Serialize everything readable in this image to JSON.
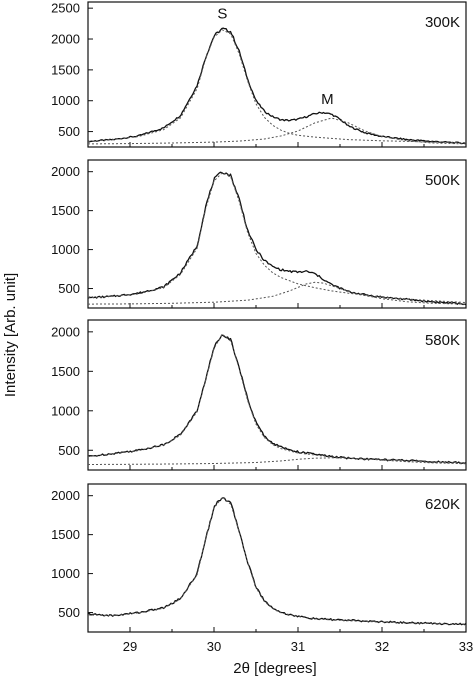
{
  "figure": {
    "ylabel": "Intensity [Arb. unit]",
    "xlabel": "2θ [degrees]"
  },
  "chart_data": [
    {
      "type": "line",
      "panel_label": "300K",
      "xlim": [
        28.5,
        33
      ],
      "ylim": [
        250,
        2600
      ],
      "xticks": [
        29,
        30,
        31,
        32,
        33
      ],
      "yticks": [
        500,
        1000,
        1500,
        2000,
        2500
      ],
      "show_x_tick_labels": false,
      "annotations": [
        {
          "text": "S",
          "x": 30.1,
          "y": 2330
        },
        {
          "text": "M",
          "x": 31.35,
          "y": 950
        }
      ],
      "series": [
        {
          "style": "solid",
          "x": [
            28.5,
            28.8,
            29.1,
            29.4,
            29.6,
            29.8,
            29.9,
            30.0,
            30.1,
            30.2,
            30.3,
            30.4,
            30.5,
            30.6,
            30.7,
            30.8,
            30.9,
            31.0,
            31.1,
            31.2,
            31.3,
            31.4,
            31.5,
            31.6,
            31.8,
            32.0,
            32.3,
            32.6,
            33.0
          ],
          "y": [
            340,
            370,
            430,
            560,
            760,
            1250,
            1700,
            2050,
            2170,
            2120,
            1800,
            1350,
            1000,
            830,
            740,
            690,
            680,
            700,
            740,
            790,
            810,
            780,
            700,
            590,
            480,
            420,
            370,
            340,
            310
          ]
        },
        {
          "style": "dotted",
          "x": [
            28.5,
            28.8,
            29.1,
            29.4,
            29.6,
            29.8,
            29.9,
            30.0,
            30.1,
            30.2,
            30.3,
            30.4,
            30.5,
            30.6,
            30.7,
            30.8,
            30.9,
            31.0,
            31.2,
            31.4,
            31.6,
            31.8,
            32.0,
            32.3,
            32.6,
            33.0
          ],
          "y": [
            340,
            370,
            420,
            530,
            720,
            1200,
            1680,
            2030,
            2150,
            2080,
            1760,
            1320,
            950,
            730,
            600,
            520,
            470,
            440,
            410,
            390,
            370,
            360,
            350,
            340,
            330,
            320
          ]
        },
        {
          "style": "dotted",
          "x": [
            28.5,
            29.0,
            29.5,
            30.0,
            30.3,
            30.6,
            30.8,
            31.0,
            31.2,
            31.4,
            31.6,
            31.8,
            32.0,
            32.3,
            32.6,
            33.0
          ],
          "y": [
            300,
            305,
            315,
            330,
            345,
            380,
            430,
            510,
            640,
            720,
            640,
            510,
            420,
            350,
            315,
            300
          ]
        }
      ]
    },
    {
      "type": "line",
      "panel_label": "500K",
      "xlim": [
        28.5,
        33
      ],
      "ylim": [
        250,
        2150
      ],
      "xticks": [
        29,
        30,
        31,
        32,
        33
      ],
      "yticks": [
        500,
        1000,
        1500,
        2000
      ],
      "show_x_tick_labels": false,
      "series": [
        {
          "style": "solid",
          "x": [
            28.5,
            28.8,
            29.1,
            29.4,
            29.6,
            29.8,
            29.9,
            30.0,
            30.1,
            30.2,
            30.3,
            30.4,
            30.5,
            30.6,
            30.7,
            30.8,
            30.9,
            31.0,
            31.1,
            31.2,
            31.3,
            31.4,
            31.6,
            31.8,
            32.0,
            32.3,
            32.6,
            33.0
          ],
          "y": [
            380,
            400,
            440,
            520,
            700,
            1050,
            1550,
            1900,
            2000,
            1950,
            1650,
            1250,
            1000,
            860,
            780,
            740,
            720,
            710,
            720,
            690,
            620,
            550,
            460,
            420,
            390,
            360,
            330,
            300
          ]
        },
        {
          "style": "dotted",
          "x": [
            28.5,
            28.8,
            29.1,
            29.4,
            29.6,
            29.8,
            29.9,
            30.0,
            30.1,
            30.2,
            30.3,
            30.4,
            30.5,
            30.6,
            30.7,
            30.8,
            31.0,
            31.2,
            31.4,
            31.6,
            32.0,
            32.5,
            33.0
          ],
          "y": [
            380,
            400,
            430,
            510,
            680,
            1020,
            1520,
            1880,
            1990,
            1930,
            1620,
            1220,
            950,
            800,
            700,
            640,
            560,
            510,
            470,
            440,
            390,
            350,
            320
          ]
        },
        {
          "style": "dotted",
          "x": [
            28.5,
            29.0,
            29.5,
            30.0,
            30.4,
            30.7,
            30.9,
            31.1,
            31.2,
            31.3,
            31.5,
            31.7,
            32.0,
            32.3,
            32.6,
            33.0
          ],
          "y": [
            300,
            303,
            310,
            325,
            350,
            400,
            470,
            560,
            580,
            570,
            500,
            430,
            370,
            330,
            310,
            300
          ]
        }
      ]
    },
    {
      "type": "line",
      "panel_label": "580K",
      "xlim": [
        28.5,
        33
      ],
      "ylim": [
        250,
        2150
      ],
      "xticks": [
        29,
        30,
        31,
        32,
        33
      ],
      "yticks": [
        500,
        1000,
        1500,
        2000
      ],
      "show_x_tick_labels": false,
      "series": [
        {
          "style": "solid",
          "x": [
            28.5,
            28.8,
            29.1,
            29.4,
            29.6,
            29.8,
            29.9,
            30.0,
            30.1,
            30.2,
            30.3,
            30.4,
            30.5,
            30.6,
            30.7,
            30.8,
            31.0,
            31.2,
            31.4,
            31.6,
            31.8,
            32.0,
            32.3,
            32.6,
            33.0
          ],
          "y": [
            420,
            460,
            500,
            570,
            700,
            1000,
            1400,
            1800,
            1980,
            1900,
            1550,
            1150,
            850,
            680,
            590,
            540,
            480,
            450,
            420,
            400,
            390,
            380,
            370,
            355,
            340
          ]
        },
        {
          "style": "dotted",
          "x": [
            28.5,
            28.8,
            29.1,
            29.4,
            29.6,
            29.8,
            29.9,
            30.0,
            30.1,
            30.2,
            30.3,
            30.4,
            30.5,
            30.6,
            30.7,
            30.8,
            31.0,
            31.2,
            31.4,
            31.6,
            31.8,
            32.0,
            32.3,
            32.6,
            33.0
          ],
          "y": [
            420,
            455,
            495,
            565,
            690,
            990,
            1390,
            1790,
            1970,
            1880,
            1530,
            1130,
            830,
            660,
            570,
            520,
            465,
            440,
            415,
            400,
            390,
            380,
            370,
            355,
            340
          ]
        },
        {
          "style": "dotted",
          "x": [
            28.5,
            29.0,
            29.5,
            30.0,
            30.5,
            30.8,
            31.0,
            31.2,
            31.4,
            31.6,
            31.8,
            32.0,
            32.3,
            32.6,
            33.0
          ],
          "y": [
            320,
            322,
            326,
            332,
            345,
            365,
            385,
            400,
            405,
            400,
            390,
            375,
            355,
            340,
            330
          ]
        }
      ]
    },
    {
      "type": "line",
      "panel_label": "620K",
      "xlim": [
        28.5,
        33
      ],
      "ylim": [
        250,
        2150
      ],
      "xticks": [
        29,
        30,
        31,
        32,
        33
      ],
      "xtick_labels": [
        "29",
        "30",
        "31",
        "32",
        "33"
      ],
      "yticks": [
        500,
        1000,
        1500,
        2000
      ],
      "show_x_tick_labels": true,
      "series": [
        {
          "style": "solid",
          "x": [
            28.5,
            28.8,
            29.1,
            29.4,
            29.6,
            29.8,
            29.9,
            30.0,
            30.1,
            30.2,
            30.3,
            30.4,
            30.5,
            30.6,
            30.7,
            30.8,
            31.0,
            31.2,
            31.4,
            31.6,
            31.8,
            32.0,
            32.3,
            32.6,
            33.0
          ],
          "y": [
            480,
            460,
            500,
            560,
            680,
            1000,
            1450,
            1850,
            1990,
            1900,
            1550,
            1150,
            830,
            650,
            560,
            500,
            450,
            420,
            410,
            400,
            390,
            380,
            370,
            360,
            350
          ]
        },
        {
          "style": "dotted",
          "x": [
            28.5,
            28.8,
            29.1,
            29.4,
            29.6,
            29.8,
            29.9,
            30.0,
            30.1,
            30.2,
            30.3,
            30.4,
            30.5,
            30.6,
            30.7,
            30.8,
            31.0,
            31.2,
            31.4,
            31.6,
            31.8,
            32.0,
            32.3,
            32.6,
            33.0
          ],
          "y": [
            470,
            460,
            495,
            555,
            675,
            990,
            1440,
            1840,
            1980,
            1890,
            1540,
            1140,
            820,
            640,
            550,
            495,
            450,
            420,
            405,
            395,
            385,
            378,
            368,
            358,
            348
          ]
        }
      ]
    }
  ]
}
